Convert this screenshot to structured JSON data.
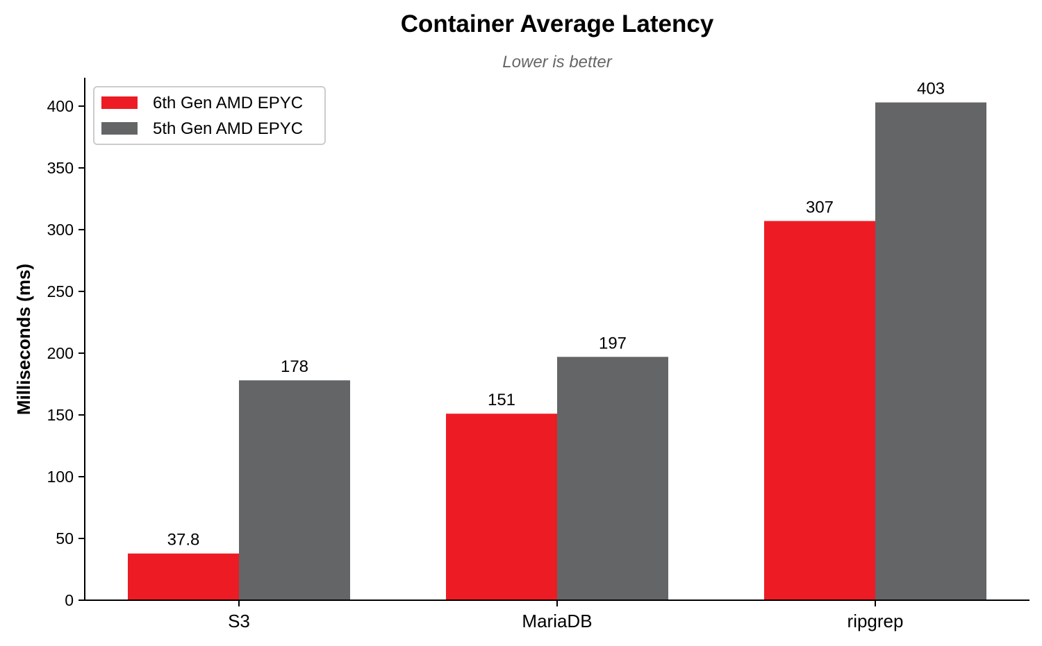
{
  "chart_data": {
    "type": "bar",
    "title": "Container Average Latency",
    "subtitle": "Lower is better",
    "xlabel": "",
    "ylabel": "Milliseconds (ms)",
    "categories": [
      "S3",
      "MariaDB",
      "ripgrep"
    ],
    "series": [
      {
        "name": "6th Gen AMD EPYC",
        "color": "#ed1c24",
        "values": [
          37.8,
          151,
          307
        ],
        "labels": [
          "37.8",
          "151",
          "307"
        ]
      },
      {
        "name": "5th Gen AMD EPYC",
        "color": "#646567",
        "values": [
          178,
          197,
          403
        ],
        "labels": [
          "178",
          "197",
          "403"
        ]
      }
    ],
    "ylim": [
      0,
      423
    ],
    "yticks": [
      0,
      50,
      100,
      150,
      200,
      250,
      300,
      350,
      400
    ],
    "grid": false,
    "legend_position": "top-left"
  }
}
